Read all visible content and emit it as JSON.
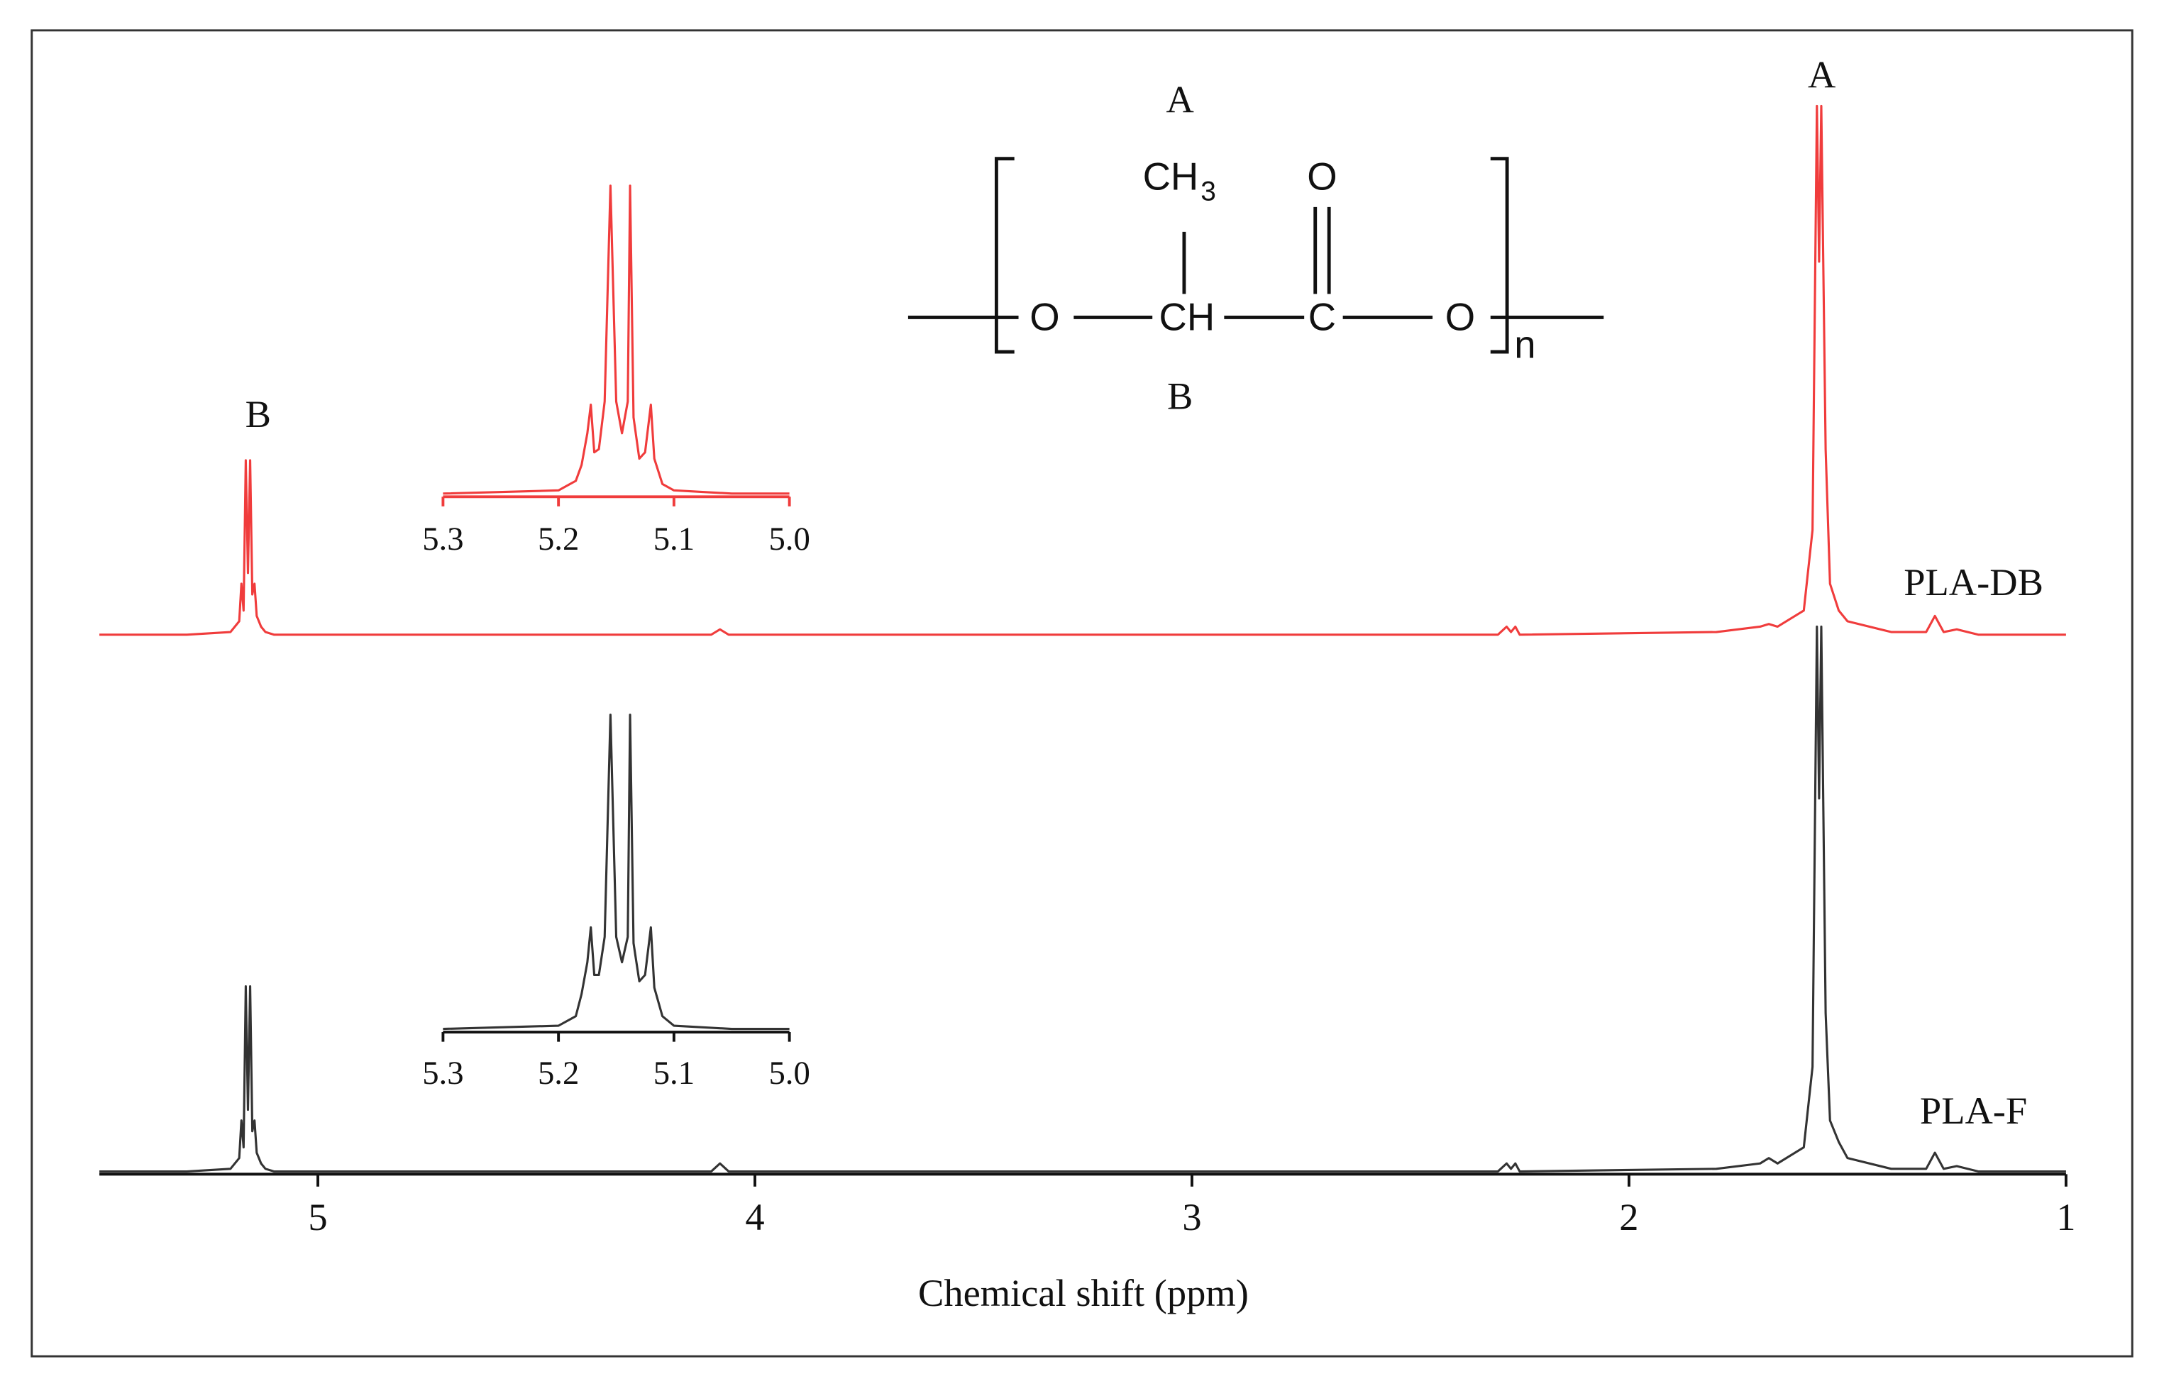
{
  "chart_data": [
    {
      "type": "line",
      "xlabel": "Chemical shift (ppm)",
      "annotations": [
        "A",
        "B"
      ],
      "x": [
        5.5,
        5.3,
        5.2,
        5.18,
        5.175,
        5.17,
        5.165,
        5.16,
        5.155,
        5.15,
        5.145,
        5.14,
        5.13,
        5.12,
        5.1,
        4.9,
        4.1,
        4.08,
        4.06,
        3.0,
        2.3,
        2.28,
        2.27,
        2.26,
        2.25,
        1.8,
        1.7,
        1.68,
        1.66,
        1.6,
        1.58,
        1.57,
        1.565,
        1.56,
        1.55,
        1.54,
        1.52,
        1.5,
        1.4,
        1.32,
        1.3,
        1.28,
        1.25,
        1.2,
        1.0
      ],
      "series": [
        {
          "name": "PLA-DB",
          "color": "#f03c3c",
          "values": [
            1.005,
            1.005,
            1.01,
            1.03,
            1.1,
            1.05,
            1.33,
            1.12,
            1.33,
            1.08,
            1.1,
            1.04,
            1.02,
            1.01,
            1.005,
            1.005,
            1.005,
            1.015,
            1.005,
            1.005,
            1.005,
            1.02,
            1.01,
            1.02,
            1.005,
            1.01,
            1.02,
            1.025,
            1.02,
            1.05,
            1.2,
            1.99,
            1.7,
            1.99,
            1.35,
            1.1,
            1.05,
            1.03,
            1.01,
            1.01,
            1.04,
            1.01,
            1.015,
            1.005,
            1.005
          ]
        },
        {
          "name": "PLA-F",
          "color": "#333333",
          "values": [
            0.005,
            0.005,
            0.01,
            0.03,
            0.1,
            0.05,
            0.35,
            0.12,
            0.35,
            0.08,
            0.1,
            0.04,
            0.02,
            0.01,
            0.005,
            0.005,
            0.005,
            0.02,
            0.005,
            0.005,
            0.005,
            0.02,
            0.01,
            0.02,
            0.005,
            0.01,
            0.02,
            0.03,
            0.02,
            0.05,
            0.2,
            1.02,
            0.7,
            1.02,
            0.3,
            0.1,
            0.06,
            0.03,
            0.01,
            0.01,
            0.04,
            0.01,
            0.015,
            0.005,
            0.005
          ]
        }
      ],
      "xlim": [
        5.5,
        1
      ],
      "ylim": [
        0,
        2.1
      ],
      "xticks": [
        5,
        4,
        3,
        2,
        1
      ],
      "axis_color": "#111111"
    },
    {
      "type": "line",
      "x": [
        5.3,
        5.2,
        5.19,
        5.185,
        5.18,
        5.175,
        5.172,
        5.169,
        5.165,
        5.16,
        5.155,
        5.15,
        5.145,
        5.14,
        5.138,
        5.135,
        5.13,
        5.125,
        5.12,
        5.117,
        5.11,
        5.1,
        5.05,
        5.0
      ],
      "series": [
        {
          "color": "#f03c3c",
          "values": [
            0.01,
            0.02,
            0.04,
            0.05,
            0.1,
            0.2,
            0.29,
            0.14,
            0.15,
            0.3,
            0.98,
            0.3,
            0.2,
            0.3,
            0.98,
            0.25,
            0.12,
            0.14,
            0.29,
            0.12,
            0.04,
            0.02,
            0.01,
            0.01
          ]
        }
      ],
      "xlim": [
        5.3,
        5.0
      ],
      "ylim": [
        0,
        1
      ],
      "xticks": [
        5.3,
        5.2,
        5.1,
        {
          "value": 5,
          "label": "5.0"
        }
      ],
      "axis_color": "#f03c3c"
    },
    {
      "type": "line",
      "x": [
        5.3,
        5.2,
        5.19,
        5.185,
        5.18,
        5.175,
        5.172,
        5.169,
        5.165,
        5.16,
        5.155,
        5.15,
        5.145,
        5.14,
        5.138,
        5.135,
        5.13,
        5.125,
        5.12,
        5.117,
        5.11,
        5.1,
        5.05,
        5.0
      ],
      "series": [
        {
          "color": "#333333",
          "values": [
            0.01,
            0.02,
            0.04,
            0.05,
            0.12,
            0.22,
            0.33,
            0.18,
            0.18,
            0.3,
            1,
            0.3,
            0.22,
            0.3,
            1,
            0.28,
            0.16,
            0.18,
            0.33,
            0.14,
            0.05,
            0.02,
            0.01,
            0.01
          ]
        }
      ],
      "xlim": [
        5.3,
        5.0
      ],
      "ylim": [
        0,
        1
      ],
      "xticks": [
        5.3,
        5.2,
        5.1,
        {
          "value": 5,
          "label": "5.0"
        }
      ],
      "axis_color": "#111111"
    }
  ],
  "structure": {
    "label_top": "A",
    "label_bottom": "B",
    "methyl": "CH",
    "methyl_sub": "3",
    "carbonyl_o": "O",
    "ester_o_left": "O",
    "methine": "CH",
    "carbon": "C",
    "ester_o_right": "O",
    "repeat": "n"
  }
}
